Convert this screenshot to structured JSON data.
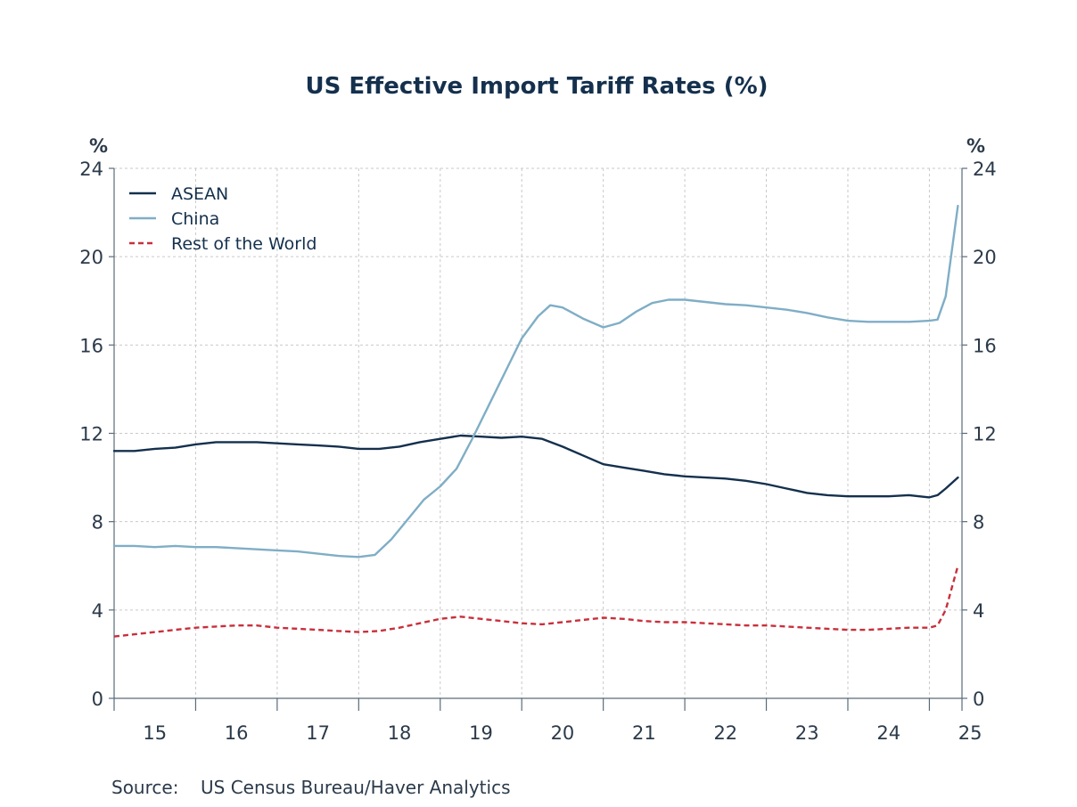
{
  "chart_data": {
    "type": "line",
    "title": "US Effective Import Tariff Rates (%)",
    "left_unit": "%",
    "right_unit": "%",
    "ylim": [
      0,
      24
    ],
    "y_ticks": [
      0,
      4,
      8,
      12,
      16,
      20,
      24
    ],
    "xlim": [
      2015,
      2025.4
    ],
    "x_tick_labels": [
      "15",
      "16",
      "17",
      "18",
      "19",
      "20",
      "21",
      "22",
      "23",
      "24",
      "25"
    ],
    "grid": true,
    "legend_position": "top-left",
    "series": [
      {
        "name": "ASEAN",
        "color": "#14304d",
        "style": "solid",
        "points": [
          [
            2015.0,
            11.2
          ],
          [
            2015.25,
            11.2
          ],
          [
            2015.5,
            11.3
          ],
          [
            2015.75,
            11.35
          ],
          [
            2016.0,
            11.5
          ],
          [
            2016.25,
            11.6
          ],
          [
            2016.5,
            11.6
          ],
          [
            2016.75,
            11.6
          ],
          [
            2017.0,
            11.55
          ],
          [
            2017.25,
            11.5
          ],
          [
            2017.5,
            11.45
          ],
          [
            2017.75,
            11.4
          ],
          [
            2018.0,
            11.3
          ],
          [
            2018.25,
            11.3
          ],
          [
            2018.5,
            11.4
          ],
          [
            2018.75,
            11.6
          ],
          [
            2019.0,
            11.75
          ],
          [
            2019.25,
            11.9
          ],
          [
            2019.5,
            11.85
          ],
          [
            2019.75,
            11.8
          ],
          [
            2020.0,
            11.85
          ],
          [
            2020.25,
            11.75
          ],
          [
            2020.5,
            11.4
          ],
          [
            2020.75,
            11.0
          ],
          [
            2021.0,
            10.6
          ],
          [
            2021.25,
            10.45
          ],
          [
            2021.5,
            10.3
          ],
          [
            2021.75,
            10.15
          ],
          [
            2022.0,
            10.05
          ],
          [
            2022.25,
            10.0
          ],
          [
            2022.5,
            9.95
          ],
          [
            2022.75,
            9.85
          ],
          [
            2023.0,
            9.7
          ],
          [
            2023.25,
            9.5
          ],
          [
            2023.5,
            9.3
          ],
          [
            2023.75,
            9.2
          ],
          [
            2024.0,
            9.15
          ],
          [
            2024.25,
            9.15
          ],
          [
            2024.5,
            9.15
          ],
          [
            2024.75,
            9.2
          ],
          [
            2025.0,
            9.1
          ],
          [
            2025.1,
            9.2
          ],
          [
            2025.2,
            9.5
          ],
          [
            2025.35,
            10.0
          ]
        ]
      },
      {
        "name": "China",
        "color": "#7faec6",
        "style": "solid",
        "points": [
          [
            2015.0,
            6.9
          ],
          [
            2015.25,
            6.9
          ],
          [
            2015.5,
            6.85
          ],
          [
            2015.75,
            6.9
          ],
          [
            2016.0,
            6.85
          ],
          [
            2016.25,
            6.85
          ],
          [
            2016.5,
            6.8
          ],
          [
            2016.75,
            6.75
          ],
          [
            2017.0,
            6.7
          ],
          [
            2017.25,
            6.65
          ],
          [
            2017.5,
            6.55
          ],
          [
            2017.75,
            6.45
          ],
          [
            2018.0,
            6.4
          ],
          [
            2018.2,
            6.5
          ],
          [
            2018.4,
            7.2
          ],
          [
            2018.6,
            8.1
          ],
          [
            2018.8,
            9.0
          ],
          [
            2019.0,
            9.6
          ],
          [
            2019.2,
            10.4
          ],
          [
            2019.4,
            11.8
          ],
          [
            2019.6,
            13.3
          ],
          [
            2019.8,
            14.8
          ],
          [
            2020.0,
            16.3
          ],
          [
            2020.2,
            17.3
          ],
          [
            2020.35,
            17.8
          ],
          [
            2020.5,
            17.7
          ],
          [
            2020.75,
            17.2
          ],
          [
            2021.0,
            16.8
          ],
          [
            2021.2,
            17.0
          ],
          [
            2021.4,
            17.5
          ],
          [
            2021.6,
            17.9
          ],
          [
            2021.8,
            18.05
          ],
          [
            2022.0,
            18.05
          ],
          [
            2022.25,
            17.95
          ],
          [
            2022.5,
            17.85
          ],
          [
            2022.75,
            17.8
          ],
          [
            2023.0,
            17.7
          ],
          [
            2023.25,
            17.6
          ],
          [
            2023.5,
            17.45
          ],
          [
            2023.75,
            17.25
          ],
          [
            2024.0,
            17.1
          ],
          [
            2024.25,
            17.05
          ],
          [
            2024.5,
            17.05
          ],
          [
            2024.75,
            17.05
          ],
          [
            2025.0,
            17.1
          ],
          [
            2025.1,
            17.15
          ],
          [
            2025.2,
            18.2
          ],
          [
            2025.35,
            22.3
          ]
        ]
      },
      {
        "name": "Rest of the World",
        "color": "#c8303b",
        "style": "dashed",
        "points": [
          [
            2015.0,
            2.8
          ],
          [
            2015.25,
            2.9
          ],
          [
            2015.5,
            3.0
          ],
          [
            2015.75,
            3.1
          ],
          [
            2016.0,
            3.2
          ],
          [
            2016.25,
            3.25
          ],
          [
            2016.5,
            3.3
          ],
          [
            2016.75,
            3.3
          ],
          [
            2017.0,
            3.2
          ],
          [
            2017.25,
            3.15
          ],
          [
            2017.5,
            3.1
          ],
          [
            2017.75,
            3.05
          ],
          [
            2018.0,
            3.0
          ],
          [
            2018.25,
            3.05
          ],
          [
            2018.5,
            3.2
          ],
          [
            2018.75,
            3.4
          ],
          [
            2019.0,
            3.6
          ],
          [
            2019.25,
            3.7
          ],
          [
            2019.5,
            3.6
          ],
          [
            2019.75,
            3.5
          ],
          [
            2020.0,
            3.4
          ],
          [
            2020.25,
            3.35
          ],
          [
            2020.5,
            3.45
          ],
          [
            2020.75,
            3.55
          ],
          [
            2021.0,
            3.65
          ],
          [
            2021.25,
            3.6
          ],
          [
            2021.5,
            3.5
          ],
          [
            2021.75,
            3.45
          ],
          [
            2022.0,
            3.45
          ],
          [
            2022.25,
            3.4
          ],
          [
            2022.5,
            3.35
          ],
          [
            2022.75,
            3.3
          ],
          [
            2023.0,
            3.3
          ],
          [
            2023.25,
            3.25
          ],
          [
            2023.5,
            3.2
          ],
          [
            2023.75,
            3.15
          ],
          [
            2024.0,
            3.1
          ],
          [
            2024.25,
            3.1
          ],
          [
            2024.5,
            3.15
          ],
          [
            2024.75,
            3.2
          ],
          [
            2025.0,
            3.2
          ],
          [
            2025.1,
            3.3
          ],
          [
            2025.2,
            4.0
          ],
          [
            2025.35,
            6.0
          ]
        ]
      }
    ]
  },
  "footer": {
    "source_label": "Source:",
    "source_text": "US Census Bureau/Haver Analytics"
  }
}
